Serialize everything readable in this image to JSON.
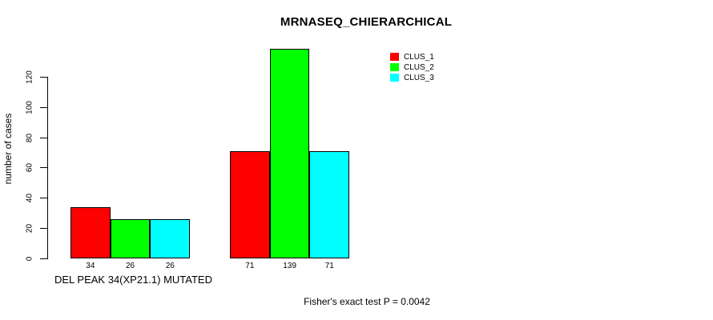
{
  "chart_data": {
    "type": "bar",
    "title": "MRNASEQ_CHIERARCHICAL",
    "ylabel": "number of cases",
    "xlabel": "",
    "ylim": [
      0,
      139
    ],
    "yticks": [
      0,
      20,
      40,
      60,
      80,
      100,
      120
    ],
    "grid": false,
    "legend_position": "top-right-inside",
    "categories": [
      "DEL PEAK 34(XP21.1) MUTATED",
      ""
    ],
    "series": [
      {
        "name": "CLUS_1",
        "color": "#ff0000",
        "values": [
          34,
          71
        ]
      },
      {
        "name": "CLUS_2",
        "color": "#00ff00",
        "values": [
          26,
          139
        ]
      },
      {
        "name": "CLUS_3",
        "color": "#00ffff",
        "values": [
          26,
          71
        ]
      }
    ],
    "bar_value_labels": [
      [
        "34",
        "26",
        "26"
      ],
      [
        "71",
        "139",
        "71"
      ]
    ],
    "group_labels": [
      "DEL PEAK 34(XP21.1) MUTATED",
      ""
    ],
    "footnote": "Fisher's exact test P = 0.0042"
  },
  "colors": {
    "background": "#ffffff",
    "axis": "#000000",
    "bar_border": "#000000",
    "text": "#000000"
  }
}
